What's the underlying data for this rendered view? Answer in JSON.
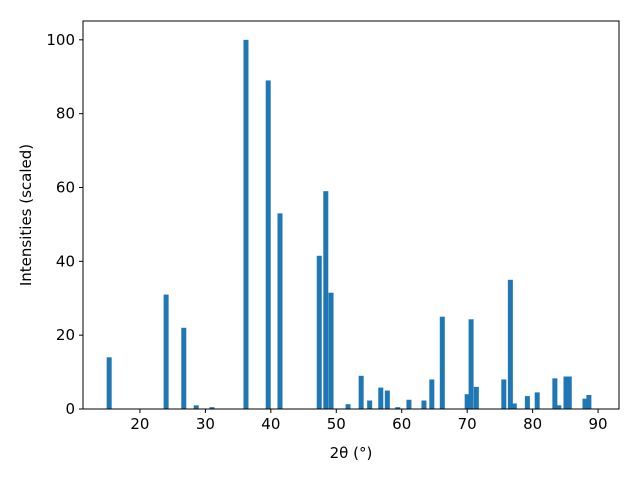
{
  "chart_data": {
    "type": "bar",
    "xlabel": "2θ (°)",
    "ylabel": "Intensities (scaled)",
    "x": [
      15.3,
      24.0,
      26.7,
      28.6,
      31.0,
      36.2,
      39.6,
      41.4,
      47.4,
      48.4,
      49.2,
      51.8,
      53.8,
      55.1,
      56.8,
      57.8,
      59.4,
      61.1,
      63.4,
      64.6,
      66.2,
      70.0,
      70.6,
      71.4,
      75.6,
      76.6,
      77.2,
      79.2,
      80.7,
      83.4,
      84.0,
      85.1,
      85.6,
      88.0,
      88.6
    ],
    "values": [
      14,
      31,
      22,
      1,
      0.5,
      100,
      89,
      53,
      41.5,
      59,
      31.5,
      1.3,
      9,
      2.3,
      5.8,
      5,
      0.5,
      2.5,
      2.3,
      8,
      25,
      4,
      24.3,
      6,
      8,
      35,
      1.5,
      3.5,
      4.5,
      8.3,
      1,
      8.8,
      8.8,
      2.8,
      3.8
    ],
    "color": "#1f77b4",
    "xlim": [
      11.3,
      93.2
    ],
    "ylim": [
      0,
      105.1
    ],
    "xticks": [
      20,
      30,
      40,
      50,
      60,
      70,
      80,
      90
    ],
    "yticks": [
      0,
      20,
      40,
      60,
      80,
      100
    ]
  }
}
